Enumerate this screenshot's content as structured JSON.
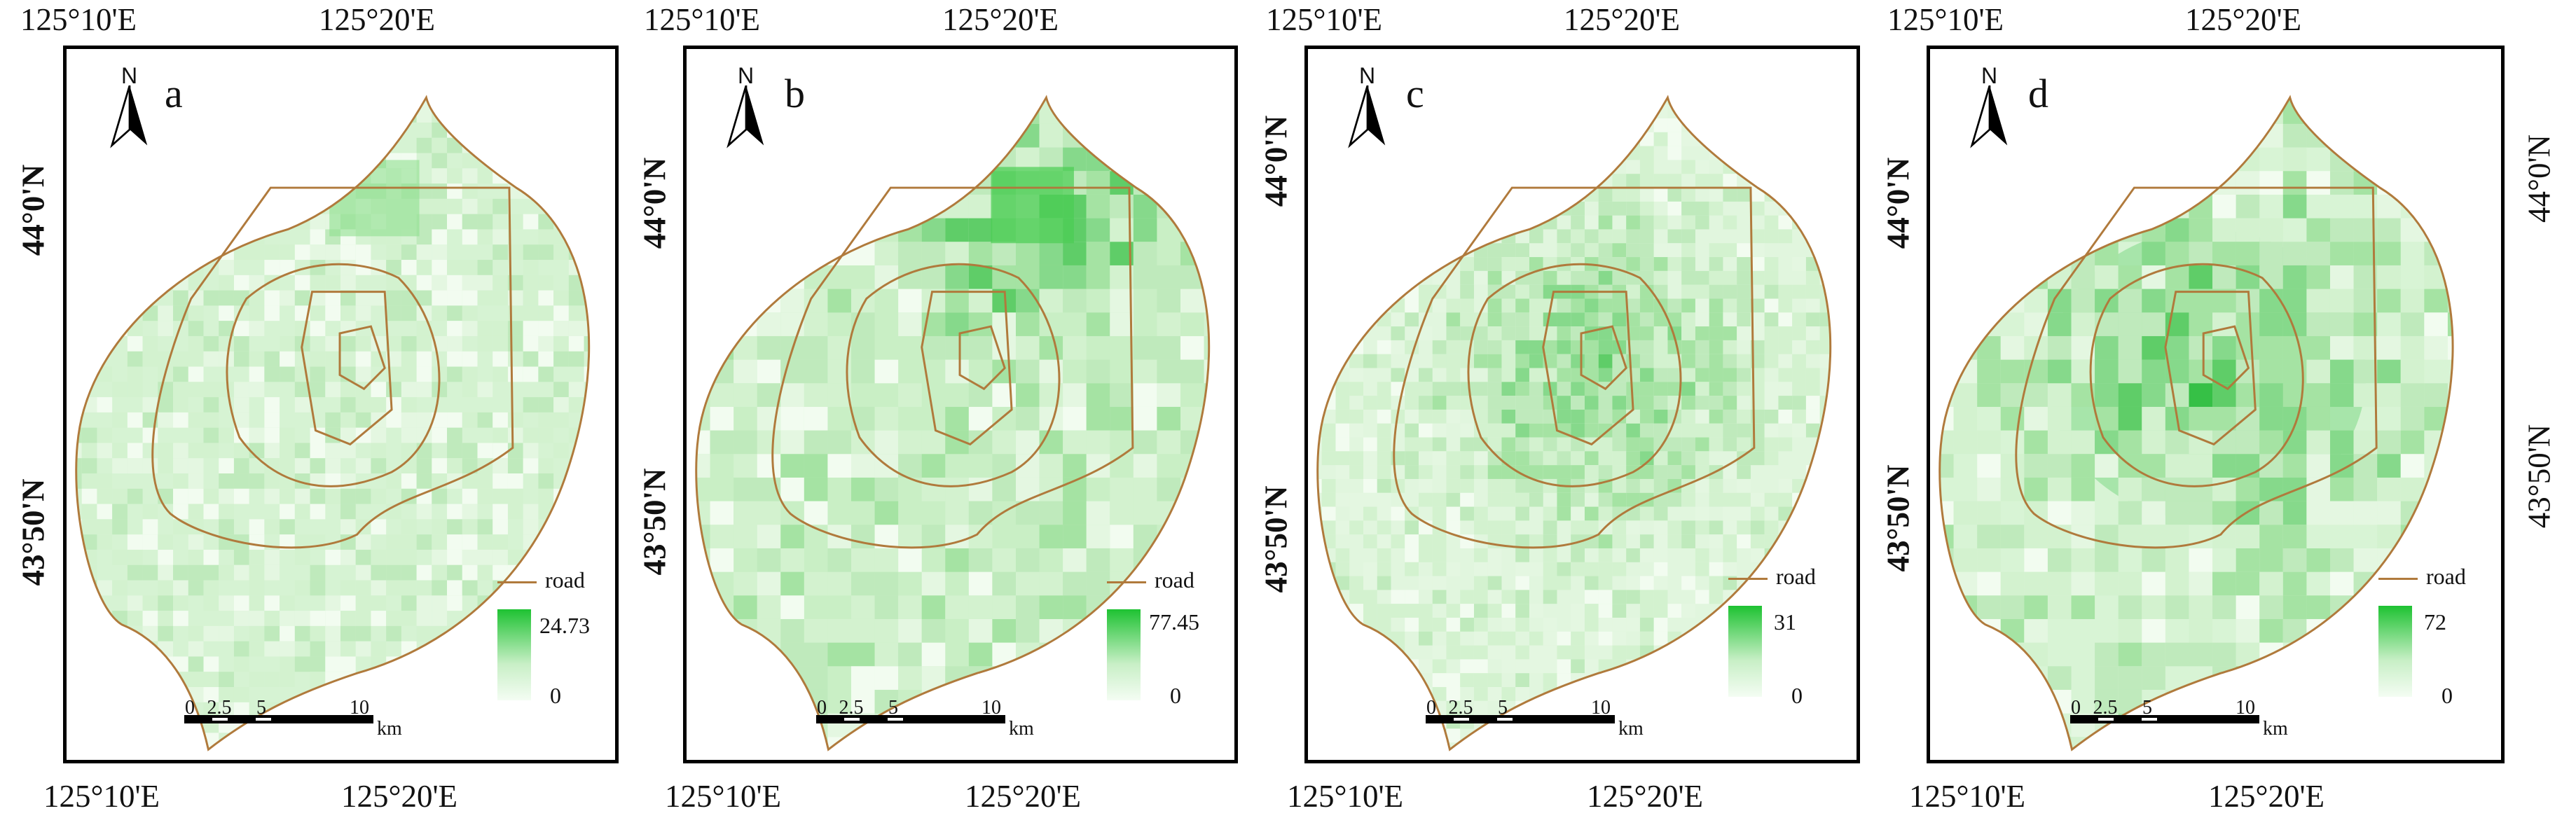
{
  "colors": {
    "road": "#b07a3c",
    "ramp_high": "#1ec232",
    "ramp_low": "#f4fdf3",
    "frame": "#000000"
  },
  "axes": {
    "lon_left": "125°10'E",
    "lon_right": "125°20'E",
    "lat_top": "44°0'N",
    "lat_bottom": "43°50'N"
  },
  "legend": {
    "road_label": "road",
    "scale_ticks": [
      "0",
      "2.5",
      "5",
      "10"
    ],
    "scale_unit": "km"
  },
  "north_label": "N",
  "panels": [
    {
      "letter": "a",
      "max": "24.73",
      "min": "0",
      "intensity": 0.45,
      "hotspot": "diffuse"
    },
    {
      "letter": "b",
      "max": "77.45",
      "min": "0",
      "intensity": 0.55,
      "hotspot": "north"
    },
    {
      "letter": "c",
      "max": "31",
      "min": "0",
      "intensity": 0.4,
      "hotspot": "center"
    },
    {
      "letter": "d",
      "max": "72",
      "min": "0",
      "intensity": 0.6,
      "hotspot": "center-ring"
    }
  ],
  "right_edge": {
    "lat_top": "44°0'N",
    "lat_bottom": "43°50'N"
  },
  "panel_b_lat_top_alt": "44°0'N"
}
